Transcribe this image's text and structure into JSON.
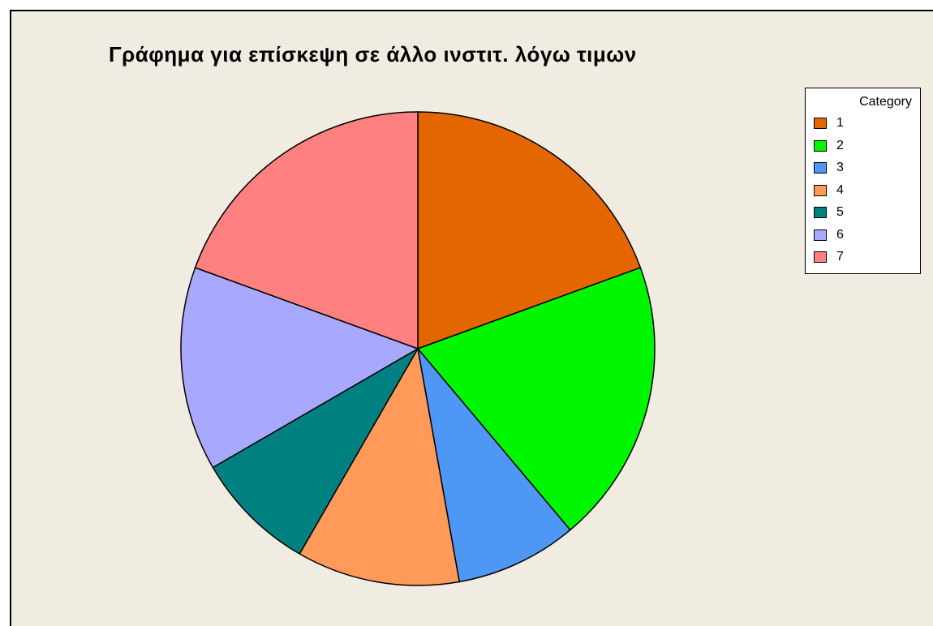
{
  "chart_data": {
    "type": "pie",
    "title": "Γράφημα για επίσκεψη σε άλλο ινστιτ. λόγω τιμων",
    "legend_title": "Category",
    "legend_position": "top-right",
    "categories": [
      "1",
      "2",
      "3",
      "4",
      "5",
      "6",
      "7"
    ],
    "values": [
      19.4,
      19.4,
      8.3,
      11.1,
      8.3,
      13.9,
      19.4
    ],
    "colors": [
      "#e36600",
      "#00f500",
      "#4e97f5",
      "#ff9a5a",
      "#008080",
      "#a8a8ff",
      "#ff8080"
    ]
  }
}
